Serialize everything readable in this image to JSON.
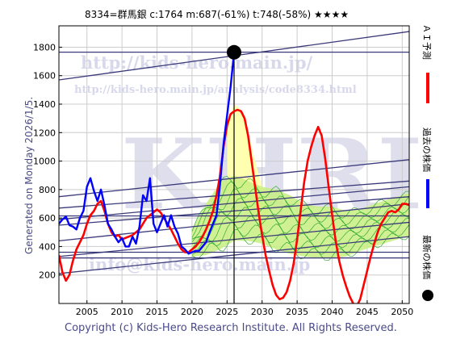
{
  "header": {
    "title": "8334=群馬銀 c:1764 m:687(-61%) t:748(-58%) ★★★★"
  },
  "generated_text": "Generated on Monday 2026/1/5.",
  "copyright": "Copyright (c) Kids-Hero Research Institute. All Rights Reserved.",
  "watermarks": {
    "url_main": "http://kids-hero.main.jp/",
    "url_analysis": "http://kids-hero.main.jp/analysis/code8334.html",
    "big": "KHRI",
    "mail": "info@kids-hero.main.jp"
  },
  "legend": {
    "ai_forecast": "ＡＩ予測",
    "past_price": "過去の株価",
    "latest_price": "最新の株価"
  },
  "colors": {
    "ai_forecast": "#ff0000",
    "past_price": "#0000ff",
    "latest_price": "#000000",
    "trend_lines": "#3a3a7a",
    "band_fill": "#c8ee80",
    "band_lines": "#33aa33",
    "yellow_fill": "#ffffb0"
  },
  "chart_data": {
    "type": "line",
    "title": "8334=群馬銀 c:1764 m:687(-61%) t:748(-58%) ★★★★",
    "xlabel": "",
    "ylabel": "",
    "xlim": [
      2001,
      2051
    ],
    "ylim": [
      0,
      1950
    ],
    "x_ticks": [
      2005,
      2010,
      2015,
      2020,
      2025,
      2030,
      2035,
      2040,
      2045,
      2050
    ],
    "y_ticks": [
      200,
      400,
      600,
      800,
      1000,
      1200,
      1400,
      1600,
      1800
    ],
    "grid": true,
    "latest_point": {
      "x": 2026.0,
      "y": 1764
    },
    "series": [
      {
        "name": "過去の株価",
        "x": [
          2001,
          2001.5,
          2002,
          2002.5,
          2003,
          2003.5,
          2004,
          2004.5,
          2005,
          2005.5,
          2006,
          2006.5,
          2007,
          2007.5,
          2008,
          2008.5,
          2009,
          2009.5,
          2010,
          2010.5,
          2011,
          2011.5,
          2012,
          2012.5,
          2013,
          2013.5,
          2014,
          2014.5,
          2015,
          2015.5,
          2016,
          2016.5,
          2017,
          2017.5,
          2018,
          2018.5,
          2019,
          2019.5,
          2020,
          2020.5,
          2021,
          2021.5,
          2022,
          2022.5,
          2023,
          2023.5,
          2024,
          2024.5,
          2025,
          2025.5,
          2026
        ],
        "values": [
          560,
          590,
          610,
          550,
          540,
          520,
          600,
          650,
          820,
          880,
          790,
          720,
          800,
          690,
          560,
          520,
          470,
          430,
          460,
          400,
          400,
          470,
          420,
          540,
          760,
          720,
          880,
          560,
          500,
          560,
          620,
          540,
          620,
          540,
          490,
          400,
          380,
          350,
          360,
          370,
          370,
          400,
          430,
          500,
          560,
          620,
          840,
          1120,
          1320,
          1520,
          1764
        ]
      },
      {
        "name": "ＡＩ予測",
        "x": [
          2001,
          2001.5,
          2002,
          2002.5,
          2003,
          2003.5,
          2004,
          2004.5,
          2005,
          2005.5,
          2006,
          2006.5,
          2007,
          2007.5,
          2008,
          2008.5,
          2009,
          2009.5,
          2010,
          2010.5,
          2011,
          2011.5,
          2012,
          2012.5,
          2013,
          2013.5,
          2014,
          2014.5,
          2015,
          2015.5,
          2016,
          2016.5,
          2017,
          2017.5,
          2018,
          2018.5,
          2019,
          2019.5,
          2020,
          2020.5,
          2021,
          2021.5,
          2022,
          2022.5,
          2023,
          2023.5,
          2024,
          2024.5,
          2025,
          2025.5,
          2026,
          2026.5,
          2027,
          2027.5,
          2028,
          2028.5,
          2029,
          2029.5,
          2030,
          2030.5,
          2031,
          2031.5,
          2032,
          2032.5,
          2033,
          2033.5,
          2034,
          2034.5,
          2035,
          2035.5,
          2036,
          2036.5,
          2037,
          2037.5,
          2038,
          2038.5,
          2039,
          2039.5,
          2040,
          2040.5,
          2041,
          2041.5,
          2042,
          2042.5,
          2043,
          2043.5,
          2044,
          2044.5,
          2045,
          2045.5,
          2046,
          2046.5,
          2047,
          2047.5,
          2048,
          2048.5,
          2049,
          2049.5,
          2050,
          2050.5,
          2051
        ],
        "values": [
          340,
          220,
          160,
          200,
          300,
          380,
          430,
          480,
          560,
          620,
          650,
          700,
          720,
          650,
          560,
          500,
          470,
          480,
          450,
          460,
          470,
          480,
          500,
          520,
          560,
          600,
          620,
          640,
          660,
          640,
          600,
          560,
          520,
          470,
          420,
          380,
          360,
          360,
          380,
          400,
          430,
          470,
          520,
          580,
          650,
          760,
          900,
          1100,
          1250,
          1330,
          1350,
          1360,
          1350,
          1300,
          1180,
          1000,
          820,
          640,
          480,
          340,
          230,
          130,
          60,
          30,
          40,
          80,
          160,
          280,
          450,
          650,
          850,
          1000,
          1100,
          1180,
          1240,
          1180,
          1020,
          820,
          620,
          440,
          300,
          200,
          120,
          50,
          0,
          -20,
          30,
          130,
          230,
          330,
          420,
          500,
          560,
          600,
          640,
          650,
          640,
          660,
          700,
          700,
          690
        ]
      }
    ],
    "trend_lines": [
      {
        "from": [
          2001,
          1570
        ],
        "to": [
          2051,
          1910
        ]
      },
      {
        "from": [
          2001,
          1765
        ],
        "to": [
          2051,
          1765
        ]
      },
      {
        "from": [
          2001,
          750
        ],
        "to": [
          2051,
          1010
        ]
      },
      {
        "from": [
          2001,
          670
        ],
        "to": [
          2051,
          860
        ]
      },
      {
        "from": [
          2001,
          615
        ],
        "to": [
          2051,
          615
        ]
      },
      {
        "from": [
          2001,
          590
        ],
        "to": [
          2051,
          820
        ]
      },
      {
        "from": [
          2001,
          550
        ],
        "to": [
          2051,
          750
        ]
      },
      {
        "from": [
          2001,
          440
        ],
        "to": [
          2051,
          700
        ]
      },
      {
        "from": [
          2001,
          330
        ],
        "to": [
          2051,
          570
        ]
      },
      {
        "from": [
          2001,
          210
        ],
        "to": [
          2051,
          470
        ]
      },
      {
        "from": [
          2001,
          320
        ],
        "to": [
          2051,
          320
        ]
      },
      {
        "from": [
          2001,
          360
        ],
        "to": [
          2051,
          360
        ]
      }
    ],
    "band": {
      "x": [
        2020,
        2022,
        2024,
        2026,
        2028,
        2030,
        2032,
        2034,
        2036,
        2038,
        2040,
        2042,
        2044,
        2046,
        2048,
        2050,
        2051
      ],
      "upper": [
        520,
        700,
        850,
        900,
        860,
        820,
        800,
        760,
        700,
        680,
        680,
        650,
        660,
        700,
        730,
        760,
        780
      ],
      "lower": [
        330,
        340,
        380,
        440,
        440,
        420,
        380,
        350,
        330,
        320,
        320,
        330,
        370,
        400,
        430,
        460,
        470
      ]
    },
    "yellow_area": {
      "x": [
        2025,
        2026,
        2027,
        2028,
        2029,
        2030,
        2031
      ],
      "upper": [
        1250,
        1400,
        1360,
        1200,
        1000,
        820,
        650
      ],
      "lower": [
        700,
        720,
        700,
        650,
        600,
        560,
        540
      ]
    }
  }
}
